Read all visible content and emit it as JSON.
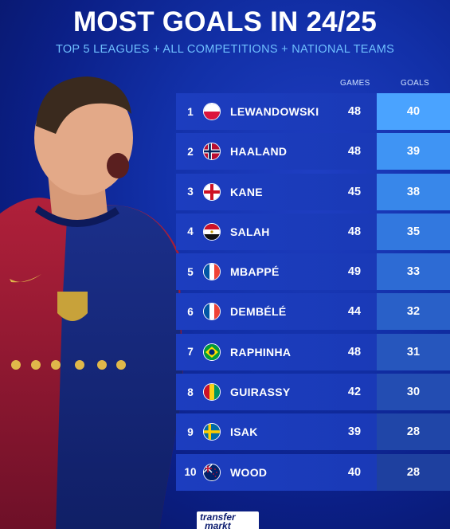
{
  "title": "MOST GOALS IN 24/25",
  "subtitle": "TOP 5 LEAGUES + ALL COMPETITIONS + NATIONAL TEAMS",
  "columns": {
    "games": "GAMES",
    "goals": "GOALS"
  },
  "players": [
    {
      "rank": "1",
      "flag": "poland-flag-icon",
      "name": "LEWANDOWSKI",
      "games": "48",
      "goals": "40"
    },
    {
      "rank": "2",
      "flag": "norway-flag-icon",
      "name": "HAALAND",
      "games": "48",
      "goals": "39"
    },
    {
      "rank": "3",
      "flag": "england-flag-icon",
      "name": "KANE",
      "games": "45",
      "goals": "38"
    },
    {
      "rank": "4",
      "flag": "egypt-flag-icon",
      "name": "SALAH",
      "games": "48",
      "goals": "35"
    },
    {
      "rank": "5",
      "flag": "france-flag-icon",
      "name": "MBAPPÉ",
      "games": "49",
      "goals": "33"
    },
    {
      "rank": "6",
      "flag": "france-flag-icon",
      "name": "DEMBÉLÉ",
      "games": "44",
      "goals": "32"
    },
    {
      "rank": "7",
      "flag": "brazil-flag-icon",
      "name": "RAPHINHA",
      "games": "48",
      "goals": "31"
    },
    {
      "rank": "8",
      "flag": "guinea-flag-icon",
      "name": "GUIRASSY",
      "games": "42",
      "goals": "30"
    },
    {
      "rank": "9",
      "flag": "sweden-flag-icon",
      "name": "ISAK",
      "games": "39",
      "goals": "28"
    },
    {
      "rank": "10",
      "flag": "new-zealand-flag-icon",
      "name": "WOOD",
      "games": "40",
      "goals": "28"
    }
  ],
  "goal_cell_colors": [
    "#4aa3ff",
    "#3f94f4",
    "#3887ea",
    "#3278df",
    "#2d6bd4",
    "#2960c8",
    "#2656bd",
    "#234db2",
    "#2046a8",
    "#1e409f"
  ],
  "logo": {
    "line1": "transfer",
    "line2": "markt"
  }
}
